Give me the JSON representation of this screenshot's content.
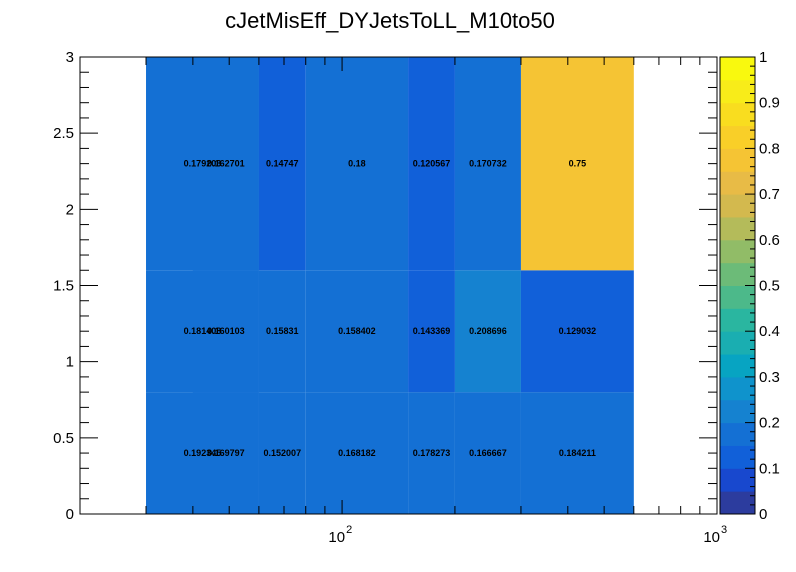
{
  "chart_data": {
    "type": "heatmap",
    "title": "cJetMisEff_DYJetsToLL_M10to50",
    "xlabel": "",
    "ylabel": "",
    "xscale": "log",
    "xlim": [
      20,
      1000
    ],
    "ylim": [
      0,
      3
    ],
    "x_bin_edges": [
      30,
      40,
      60,
      80,
      100,
      150,
      200,
      300,
      600
    ],
    "y_bin_edges": [
      0,
      0.8,
      1.6,
      3.0
    ],
    "x_tick_labels": [
      {
        "value": 100,
        "base": "10",
        "exp": "2"
      },
      {
        "value": 1000,
        "base": "10",
        "exp": "3"
      }
    ],
    "y_tick_labels": [
      "0",
      "0.5",
      "1",
      "1.5",
      "2",
      "2.5",
      "3"
    ],
    "y_tick_values": [
      0,
      0.5,
      1,
      1.5,
      2,
      2.5,
      3
    ],
    "cells": [
      {
        "x0": 30,
        "x1": 60,
        "y0": 0,
        "y1": 0.8,
        "value": 0.192345,
        "label": "0.192345"
      },
      {
        "x0": 30,
        "x1": 60,
        "y0": 0.8,
        "y1": 1.6,
        "value": 0.181408,
        "label": "0.181408"
      },
      {
        "x0": 30,
        "x1": 60,
        "y0": 1.6,
        "y1": 3.0,
        "value": 0.179203,
        "label": "0.179203"
      },
      {
        "x0": 40,
        "x1": 60,
        "y0": 0,
        "y1": 0.8,
        "value": 0.169797,
        "label": "0.169797"
      },
      {
        "x0": 40,
        "x1": 60,
        "y0": 0.8,
        "y1": 1.6,
        "value": 0.160103,
        "label": "0.160103"
      },
      {
        "x0": 40,
        "x1": 60,
        "y0": 1.6,
        "y1": 3.0,
        "value": 0.162701,
        "label": "0.162701"
      },
      {
        "x0": 60,
        "x1": 80,
        "y0": 0,
        "y1": 0.8,
        "value": 0.152007,
        "label": "0.152007"
      },
      {
        "x0": 60,
        "x1": 80,
        "y0": 0.8,
        "y1": 1.6,
        "value": 0.15831,
        "label": "0.15831"
      },
      {
        "x0": 60,
        "x1": 80,
        "y0": 1.6,
        "y1": 3.0,
        "value": 0.14747,
        "label": "0.14747"
      },
      {
        "x0": 80,
        "x1": 150,
        "y0": 0,
        "y1": 0.8,
        "value": 0.168182,
        "label": "0.168182"
      },
      {
        "x0": 80,
        "x1": 150,
        "y0": 0.8,
        "y1": 1.6,
        "value": 0.158402,
        "label": "0.158402"
      },
      {
        "x0": 80,
        "x1": 150,
        "y0": 1.6,
        "y1": 3.0,
        "value": 0.18,
        "label": "0.18"
      },
      {
        "x0": 150,
        "x1": 200,
        "y0": 0,
        "y1": 0.8,
        "value": 0.178273,
        "label": "0.178273"
      },
      {
        "x0": 150,
        "x1": 200,
        "y0": 0.8,
        "y1": 1.6,
        "value": 0.143369,
        "label": "0.143369"
      },
      {
        "x0": 150,
        "x1": 200,
        "y0": 1.6,
        "y1": 3.0,
        "value": 0.120567,
        "label": "0.120567"
      },
      {
        "x0": 200,
        "x1": 300,
        "y0": 0,
        "y1": 0.8,
        "value": 0.166667,
        "label": "0.166667"
      },
      {
        "x0": 200,
        "x1": 300,
        "y0": 0.8,
        "y1": 1.6,
        "value": 0.208696,
        "label": "0.208696"
      },
      {
        "x0": 200,
        "x1": 300,
        "y0": 1.6,
        "y1": 3.0,
        "value": 0.170732,
        "label": "0.170732"
      },
      {
        "x0": 300,
        "x1": 600,
        "y0": 0,
        "y1": 0.8,
        "value": 0.184211,
        "label": "0.184211"
      },
      {
        "x0": 300,
        "x1": 600,
        "y0": 0.8,
        "y1": 1.6,
        "value": 0.129032,
        "label": "0.129032"
      },
      {
        "x0": 300,
        "x1": 600,
        "y0": 1.6,
        "y1": 3.0,
        "value": 0.75,
        "label": "0.75"
      }
    ],
    "colorbar": {
      "zlim": [
        0,
        1
      ],
      "tick_labels": [
        "0",
        "0.1",
        "0.2",
        "0.3",
        "0.4",
        "0.5",
        "0.6",
        "0.7",
        "0.8",
        "0.9",
        "1"
      ],
      "tick_values": [
        0,
        0.1,
        0.2,
        0.3,
        0.4,
        0.5,
        0.6,
        0.7,
        0.8,
        0.9,
        1
      ],
      "palette": [
        "#2c3c9e",
        "#1848ce",
        "#1160d9",
        "#1470d4",
        "#1582d0",
        "#0f93cc",
        "#07a4c2",
        "#1aaeb1",
        "#2ab6a0",
        "#4cb98a",
        "#6cbb78",
        "#91bc67",
        "#b4bb5a",
        "#d3b94e",
        "#e8bb46",
        "#f5c434",
        "#f9cf28",
        "#f9dd1f",
        "#f8ec19",
        "#f9f90e"
      ]
    }
  }
}
